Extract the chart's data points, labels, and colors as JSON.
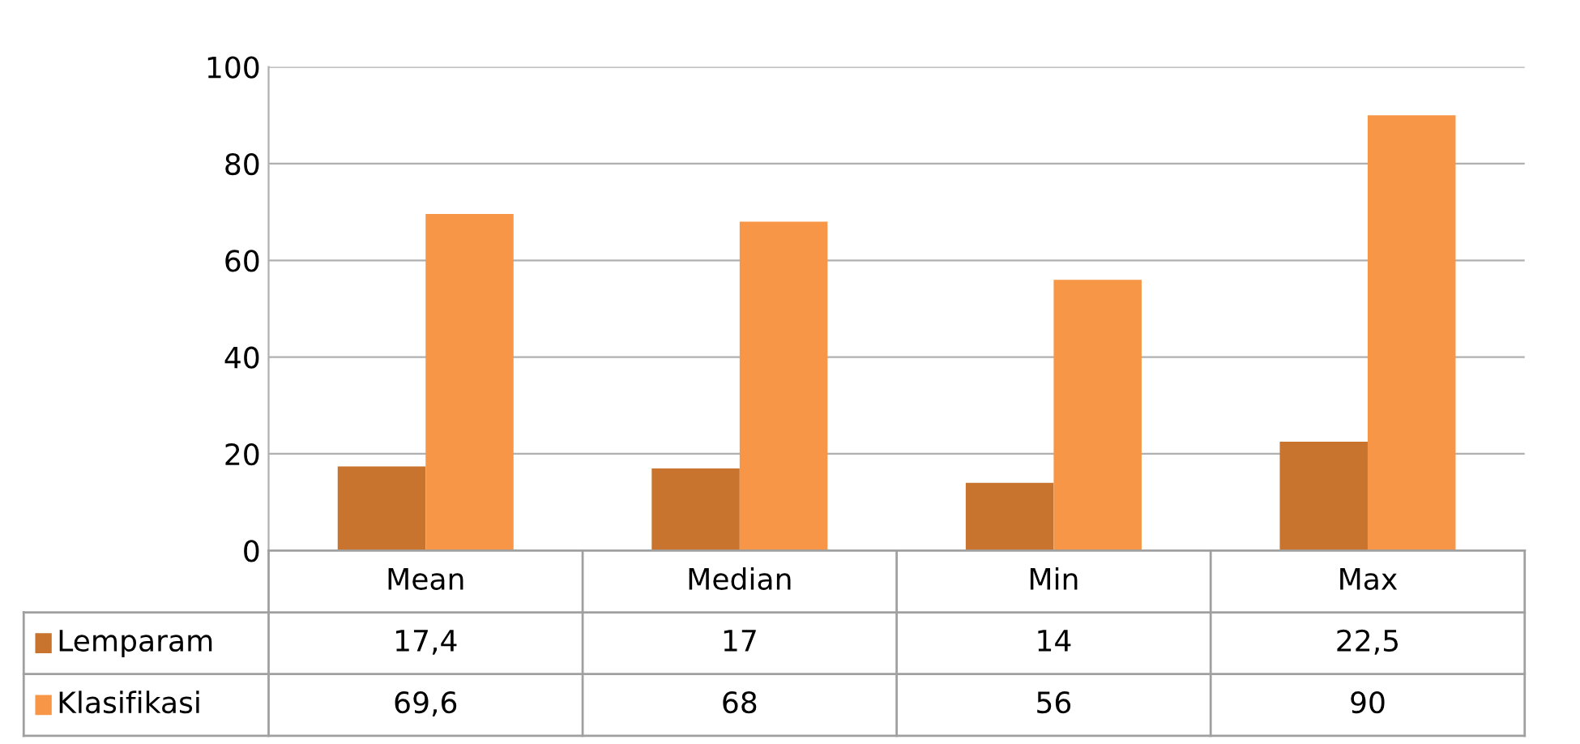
{
  "chart_data": {
    "type": "bar",
    "categories": [
      "Mean",
      "Median",
      "Min",
      "Max"
    ],
    "series": [
      {
        "name": "Lemparam",
        "color": "#c8742f",
        "values": [
          17.4,
          17,
          14,
          22.5
        ],
        "value_labels": [
          "17,4",
          "17",
          "14",
          "22,5"
        ]
      },
      {
        "name": "Klasifikasi",
        "color": "#f79646",
        "values": [
          69.6,
          68,
          56,
          90
        ],
        "value_labels": [
          "69,6",
          "68",
          "56",
          "90"
        ]
      }
    ],
    "ylim": [
      0,
      100
    ],
    "yticks": [
      0,
      20,
      40,
      60,
      80,
      100
    ],
    "grid": "y",
    "legend": "bottom left"
  }
}
